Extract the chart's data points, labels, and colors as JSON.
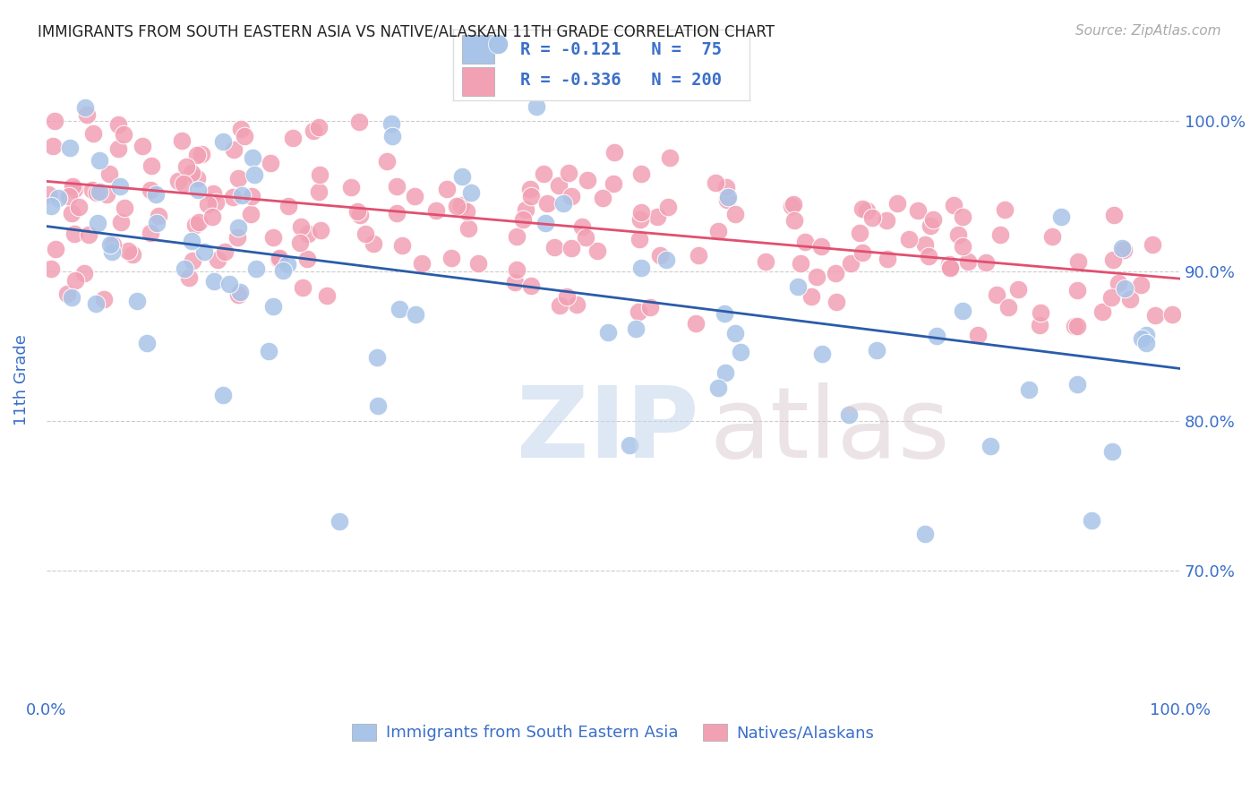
{
  "title": "IMMIGRANTS FROM SOUTH EASTERN ASIA VS NATIVE/ALASKAN 11TH GRADE CORRELATION CHART",
  "source": "Source: ZipAtlas.com",
  "ylabel": "11th Grade",
  "ytick_labels": [
    "70.0%",
    "80.0%",
    "90.0%",
    "100.0%"
  ],
  "ytick_values": [
    0.7,
    0.8,
    0.9,
    1.0
  ],
  "xmin": 0.0,
  "xmax": 1.0,
  "ymin": 0.615,
  "ymax": 1.04,
  "blue_R": "-0.121",
  "blue_N": "75",
  "pink_R": "-0.336",
  "pink_N": "200",
  "blue_color": "#a8c4e8",
  "pink_color": "#f2a0b4",
  "blue_line_color": "#2a5ca8",
  "pink_line_color": "#e05070",
  "text_color": "#3b6fc9",
  "legend_label_blue": "Immigrants from South Eastern Asia",
  "legend_label_pink": "Natives/Alaskans",
  "watermark_zip": "ZIP",
  "watermark_atlas": "atlas",
  "blue_line_x0": 0.0,
  "blue_line_x1": 1.0,
  "blue_line_y0": 0.93,
  "blue_line_y1": 0.835,
  "pink_line_x0": 0.0,
  "pink_line_x1": 1.0,
  "pink_line_y0": 0.96,
  "pink_line_y1": 0.895
}
